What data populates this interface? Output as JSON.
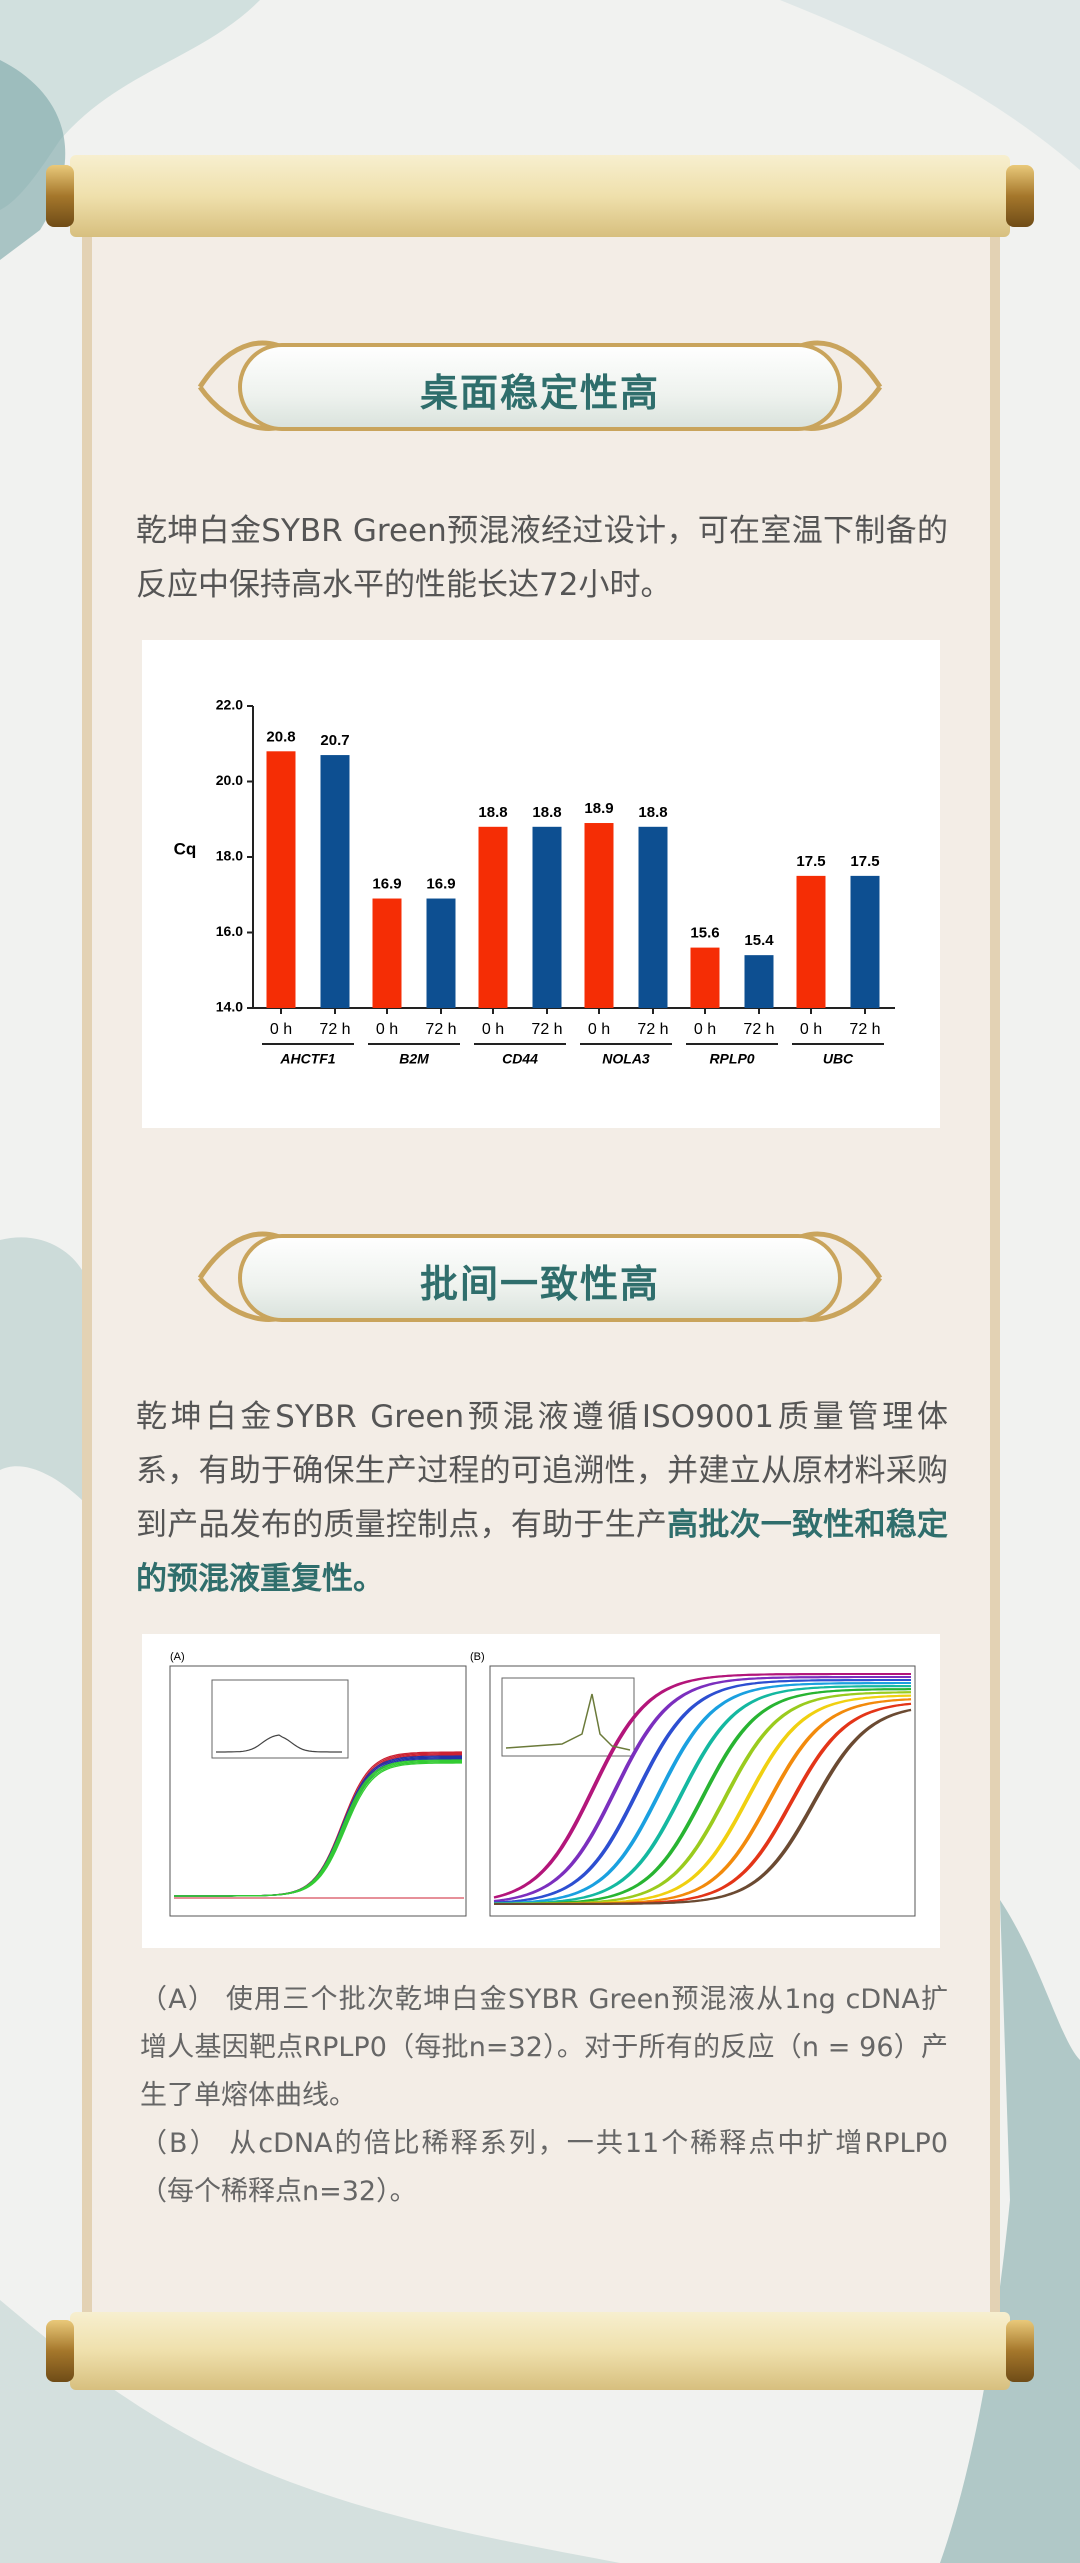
{
  "section1": {
    "heading": "桌面稳定性高",
    "paragraph": "乾坤白金SYBR Green预混液经过设计，可在室温下制备的反应中保持高水平的性能长达72小时。"
  },
  "chart_data": {
    "type": "bar",
    "ylabel": "Cq",
    "categories": [
      "AHCTF1",
      "B2M",
      "CD44",
      "NOLA3",
      "RPLP0",
      "UBC"
    ],
    "series": [
      {
        "name": "0 h",
        "color": "#f52d05",
        "values": [
          20.8,
          16.9,
          18.8,
          18.9,
          15.6,
          17.5
        ]
      },
      {
        "name": "72 h",
        "color": "#0d4f91",
        "values": [
          20.7,
          16.9,
          18.8,
          18.8,
          15.4,
          17.5
        ]
      }
    ],
    "ylim": [
      14,
      22
    ],
    "yticks": [
      {
        "value": 14,
        "label": "14.0"
      },
      {
        "value": 16,
        "label": "16.0"
      },
      {
        "value": 18,
        "label": "18.0"
      },
      {
        "value": 20,
        "label": "20.0"
      },
      {
        "value": 22,
        "label": "22.0"
      }
    ]
  },
  "section2": {
    "heading": "批间一致性高",
    "paragraph": "乾坤白金SYBR Green预混液遵循ISO9001质量管理体系，有助于确保生产过程的可追溯性，并建立从原材料采购到产品发布的质量控制点，有助于生产",
    "highlight": "高批次一致性和稳定的预混液重复性。"
  },
  "figure": {
    "labels": [
      "(A)",
      "(B)"
    ]
  },
  "caption": [
    "（A） 使用三个批次乾坤白金SYBR Green预混液从1ng cDNA扩增人基因靶点RPLP0（每批n=32）。对于所有的反应（n = 96）产生了单熔体曲线。",
    "（B） 从cDNA的倍比稀释系列，一共11个稀释点中扩增RPLP0（每个稀释点n=32）。"
  ]
}
